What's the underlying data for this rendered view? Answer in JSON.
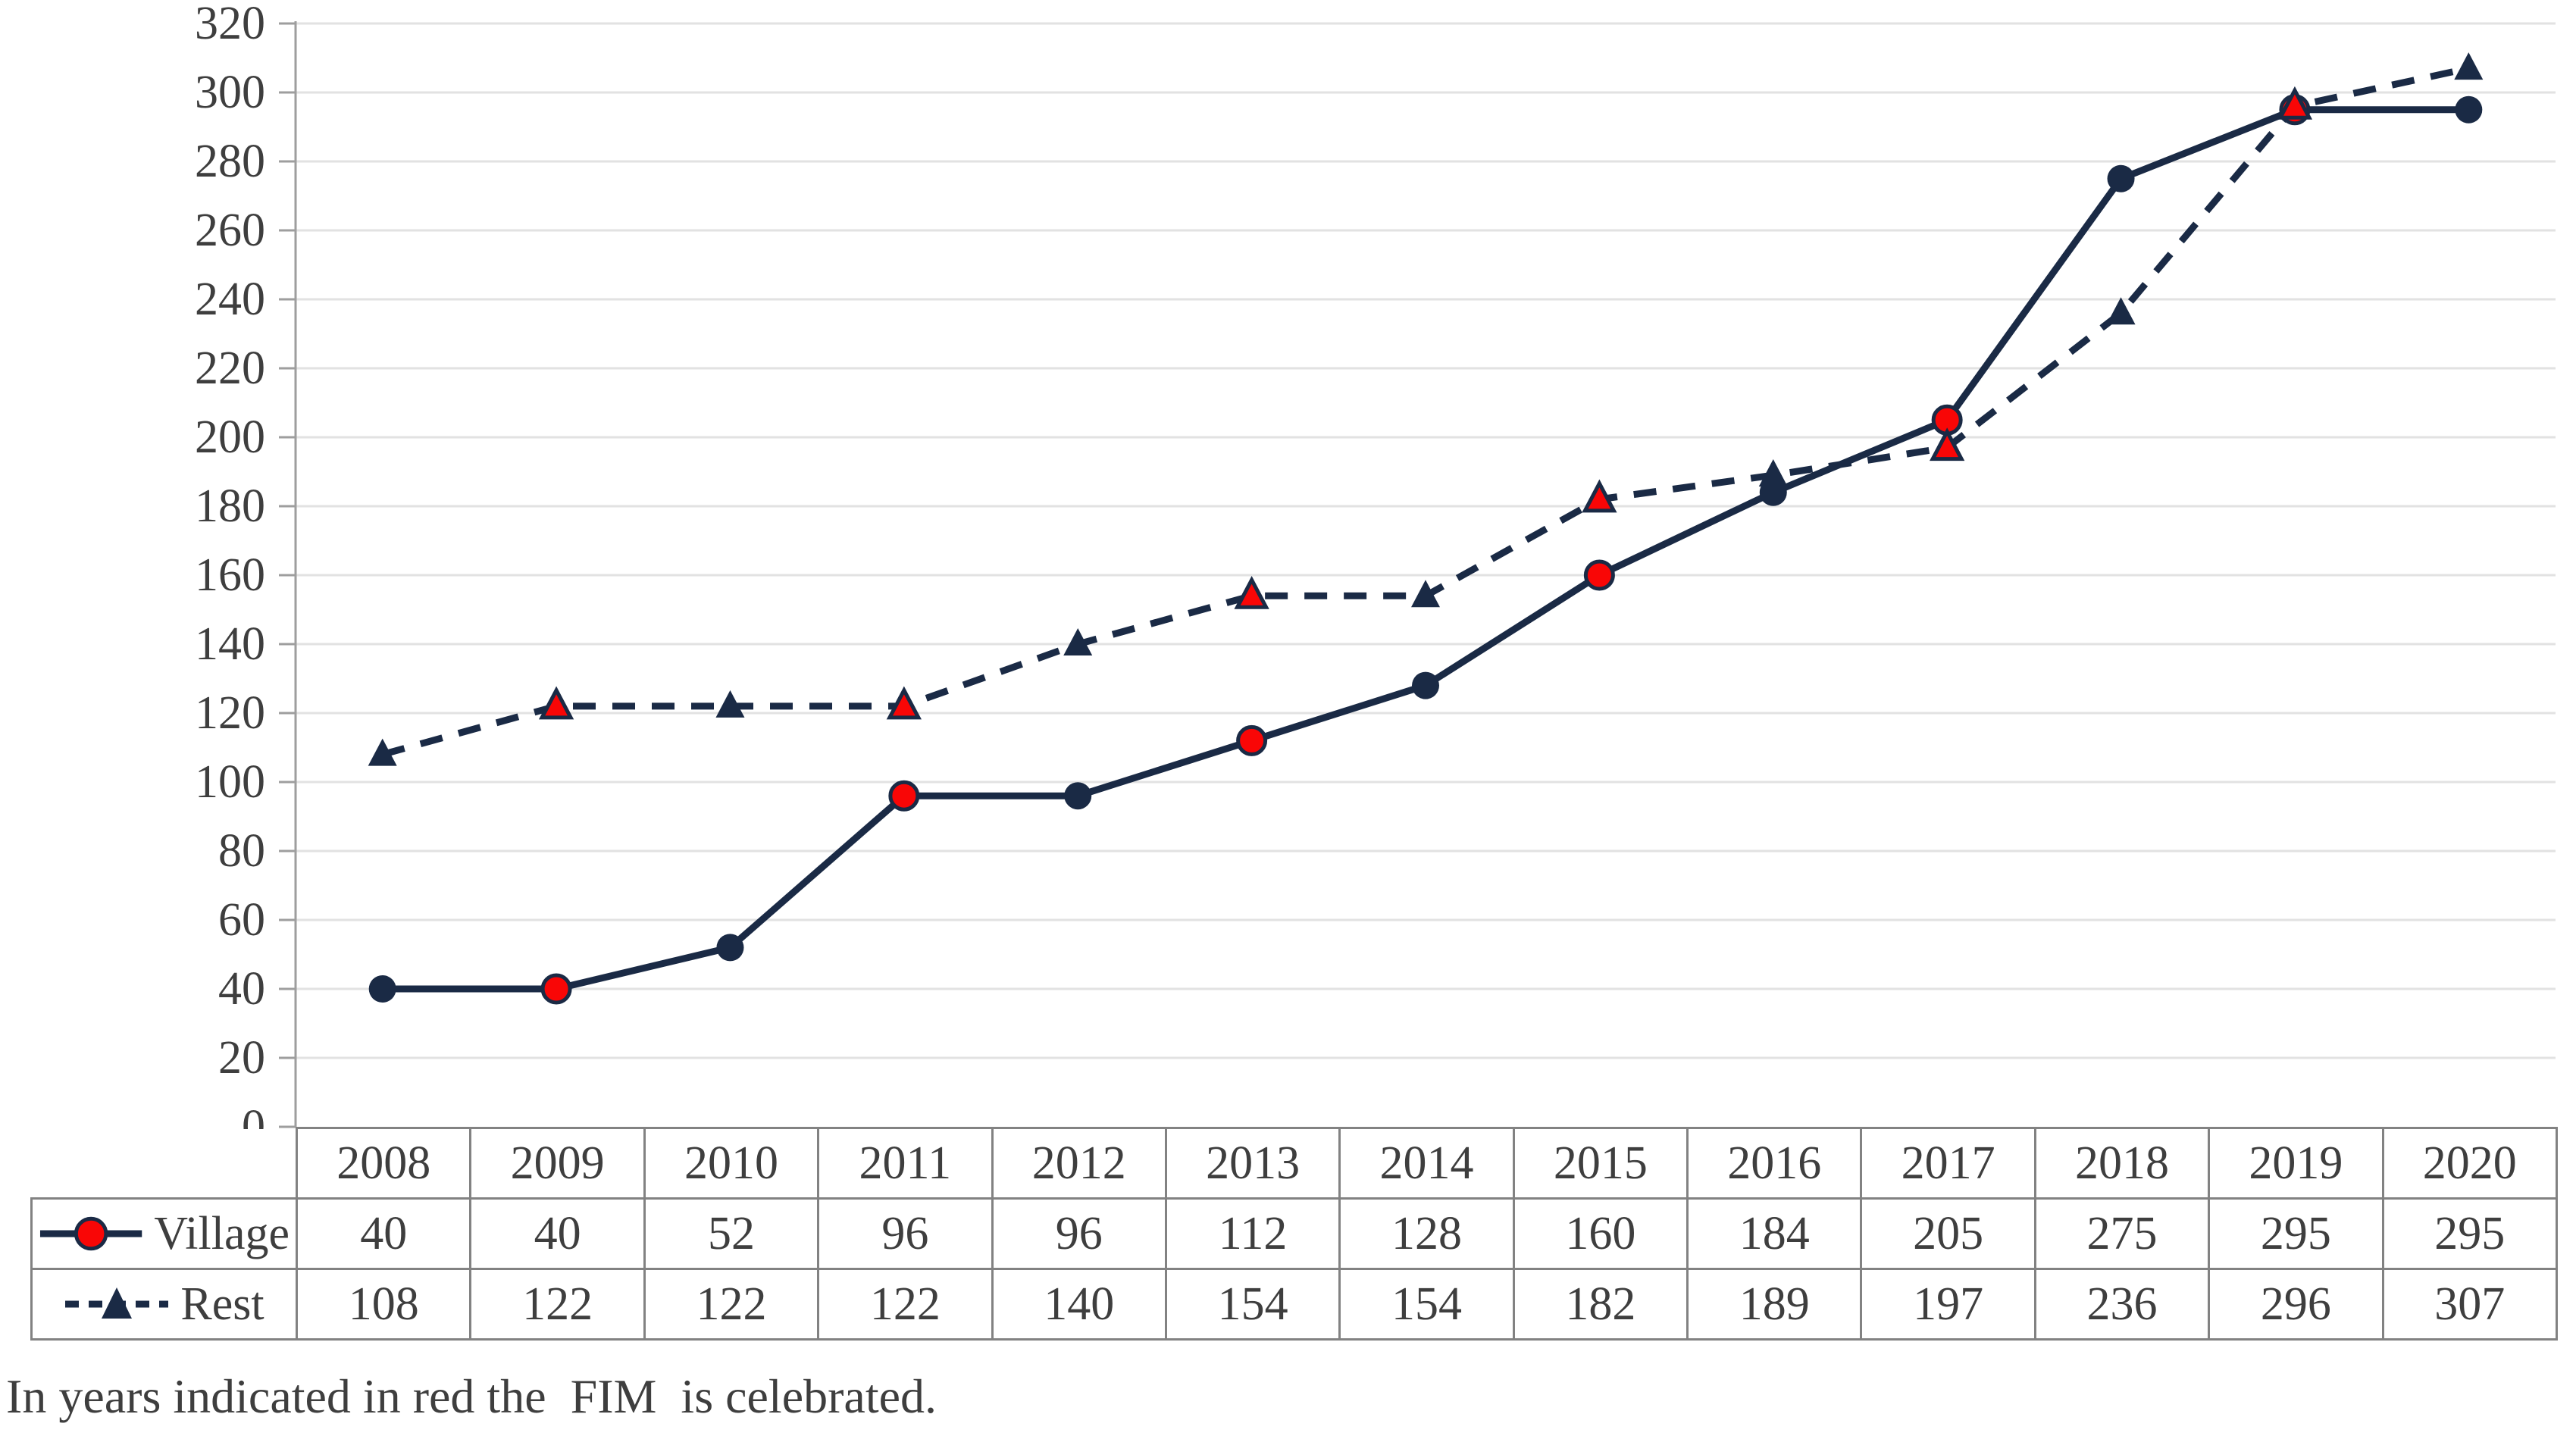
{
  "chart_data": {
    "type": "line",
    "categories": [
      "2008",
      "2009",
      "2010",
      "2011",
      "2012",
      "2013",
      "2014",
      "2015",
      "2016",
      "2017",
      "2018",
      "2019",
      "2020"
    ],
    "series": [
      {
        "name": "Village",
        "marker": "circle",
        "line": "solid",
        "legend_marker_red": true,
        "values": [
          40,
          40,
          52,
          96,
          96,
          112,
          128,
          160,
          184,
          205,
          275,
          295,
          295
        ]
      },
      {
        "name": "Rest",
        "marker": "triangle",
        "line": "dashed",
        "legend_marker_red": false,
        "values": [
          108,
          122,
          122,
          122,
          140,
          154,
          154,
          182,
          189,
          197,
          236,
          296,
          307
        ]
      }
    ],
    "red_marker_years": [
      "2009",
      "2011",
      "2013",
      "2015",
      "2017",
      "2019"
    ],
    "title": "",
    "xlabel": "",
    "ylabel": "",
    "ylim": [
      0,
      320
    ],
    "ytick_step": 20,
    "grid": true,
    "legend_position": "table-left"
  },
  "caption": "In years indicated in red the  FIM  is celebrated.",
  "colors": {
    "navy": "#1A2A45",
    "red": "#F90606",
    "gridline": "#E2E2E2",
    "axis": "#9E9E9E",
    "border": "#828282",
    "text": "#3E3E3E"
  }
}
